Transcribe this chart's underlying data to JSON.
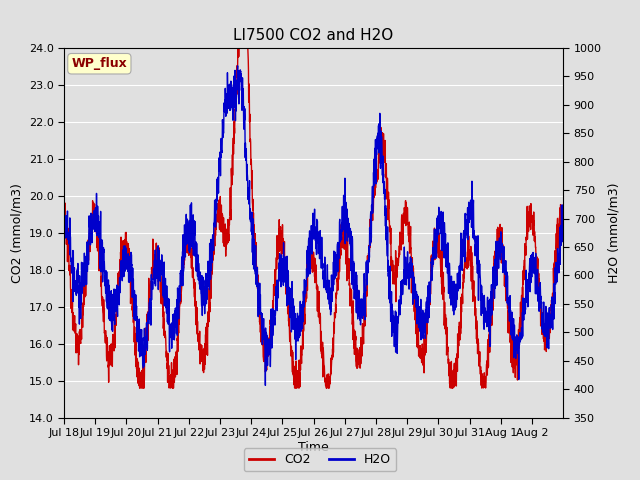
{
  "title": "LI7500 CO2 and H2O",
  "xlabel": "Time",
  "ylabel_left": "CO2 (mmol/m3)",
  "ylabel_right": "H2O (mmol/m3)",
  "co2_color": "#cc0000",
  "h2o_color": "#0000cc",
  "co2_ylim": [
    14.0,
    24.0
  ],
  "h2o_ylim": [
    350,
    1000
  ],
  "co2_yticks": [
    14.0,
    15.0,
    16.0,
    17.0,
    18.0,
    19.0,
    20.0,
    21.0,
    22.0,
    23.0,
    24.0
  ],
  "h2o_yticks": [
    350,
    400,
    450,
    500,
    550,
    600,
    650,
    700,
    750,
    800,
    850,
    900,
    950,
    1000
  ],
  "fig_bg_color": "#e0e0e0",
  "plot_bg_color": "#e0e0e0",
  "grid_color": "#ffffff",
  "watermark_text": "WP_flux",
  "watermark_color": "#8b0000",
  "watermark_bg": "#ffffcc",
  "watermark_edge": "#aaaaaa",
  "title_fontsize": 11,
  "axis_fontsize": 9,
  "tick_fontsize": 8,
  "legend_fontsize": 9,
  "linewidth": 1.0,
  "xtick_labels": [
    "Jul 18",
    "Jul 19",
    "Jul 20",
    "Jul 21",
    "Jul 22",
    "Jul 23",
    "Jul 24",
    "Jul 25",
    "Jul 26",
    "Jul 27",
    "Jul 28",
    "Jul 29",
    "Jul 30",
    "Jul 31",
    "Aug 1",
    "Aug 2"
  ]
}
